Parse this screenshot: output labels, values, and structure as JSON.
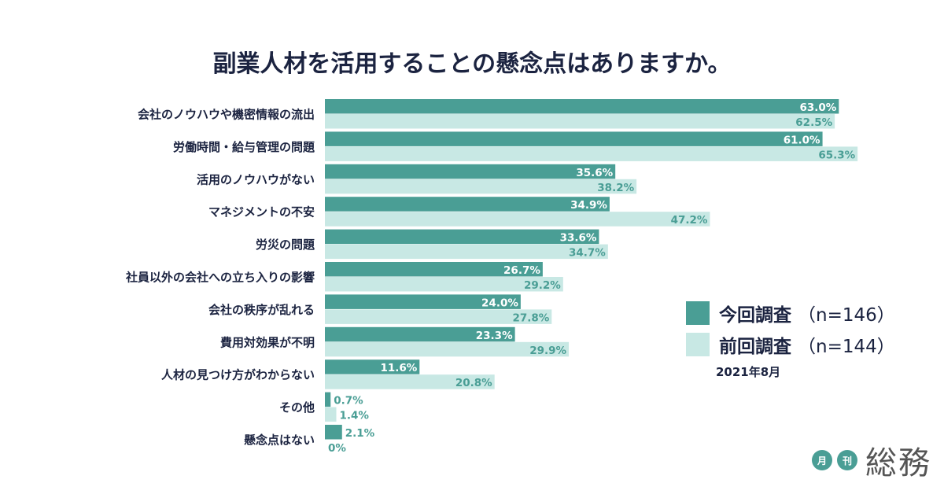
{
  "chart_data": {
    "type": "bar",
    "orientation": "horizontal",
    "title": "副業人材を活用することの懸念点はありますか。",
    "categories": [
      "会社のノウハウや機密情報の流出",
      "労働時間・給与管理の問題",
      "活用のノウハウがない",
      "マネジメントの不安",
      "労災の問題",
      "社員以外の会社への立ち入りの影響",
      "会社の秩序が乱れる",
      "費用対効果が不明",
      "人材の見つけ方がわからない",
      "その他",
      "懸念点はない"
    ],
    "series": [
      {
        "name": "今回調査",
        "n": "（n=146）",
        "color": "#4a9e95",
        "values": [
          63.0,
          61.0,
          35.6,
          34.9,
          33.6,
          26.7,
          24.0,
          23.3,
          11.6,
          0.7,
          2.1
        ],
        "labels": [
          "63.0%",
          "61.0%",
          "35.6%",
          "34.9%",
          "33.6%",
          "26.7%",
          "24.0%",
          "23.3%",
          "11.6%",
          "0.7%",
          "2.1%"
        ]
      },
      {
        "name": "前回調査",
        "n": "（n=144）",
        "color": "#c8e8e4",
        "values": [
          62.5,
          65.3,
          38.2,
          47.2,
          34.7,
          29.2,
          27.8,
          29.9,
          20.8,
          1.4,
          0
        ],
        "labels": [
          "62.5%",
          "65.3%",
          "38.2%",
          "47.2%",
          "34.7%",
          "29.2%",
          "27.8%",
          "29.9%",
          "20.8%",
          "1.4%",
          "0%"
        ]
      }
    ],
    "unit": "%",
    "legend_placement": "right",
    "grid": false,
    "note": "2021年8月"
  },
  "logo": {
    "small1": "月",
    "small2": "刊",
    "word": "総務"
  }
}
